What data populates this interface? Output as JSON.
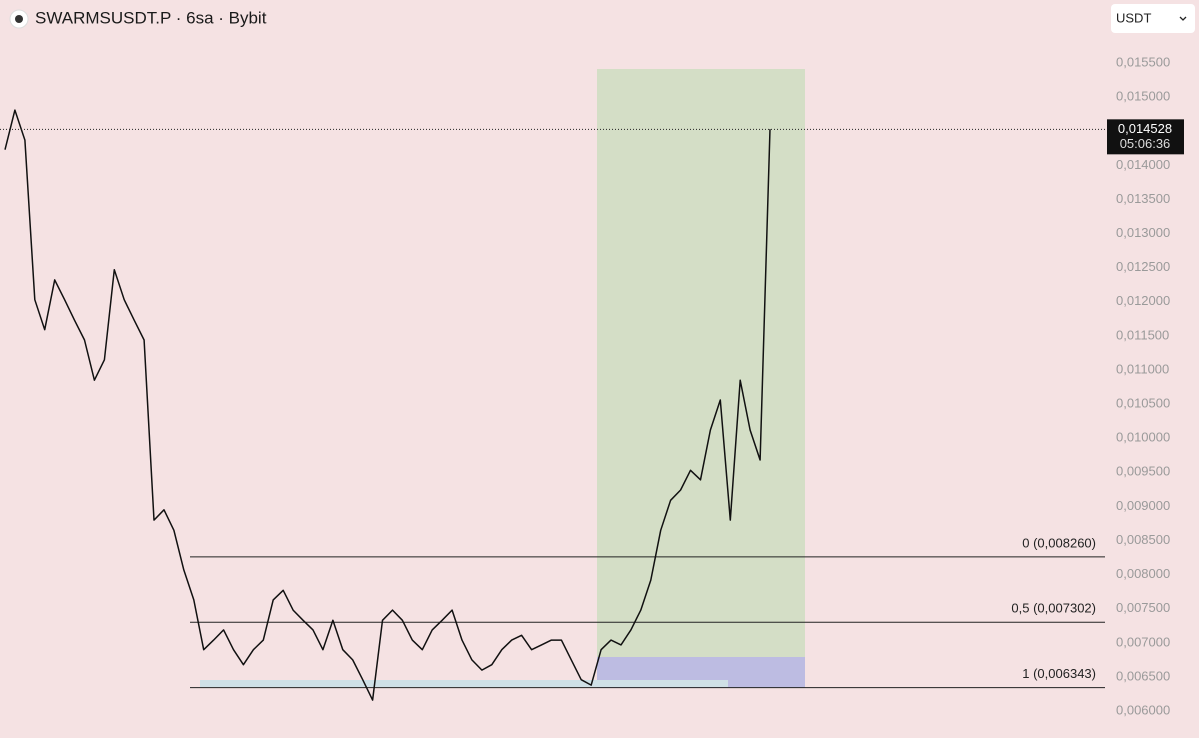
{
  "chart_data": {
    "type": "line",
    "title": "SWARMSUSDT.P · 6sa · Bybit",
    "currency": "USDT",
    "color": "#111111",
    "values": [
      0.01423,
      0.01481,
      0.01437,
      0.01203,
      0.01159,
      0.01232,
      0.01203,
      0.01173,
      0.01144,
      0.01085,
      0.01115,
      0.01247,
      0.01203,
      0.01173,
      0.01144,
      0.0088,
      0.00895,
      0.00865,
      0.00807,
      0.00763,
      0.0069,
      0.00704,
      0.00719,
      0.0069,
      0.00668,
      0.0069,
      0.00704,
      0.00763,
      0.00777,
      0.00748,
      0.00733,
      0.00719,
      0.0069,
      0.00733,
      0.0069,
      0.00675,
      0.00646,
      0.00616,
      0.00733,
      0.00748,
      0.00733,
      0.00704,
      0.0069,
      0.00719,
      0.00733,
      0.00748,
      0.00704,
      0.00675,
      0.0066,
      0.00668,
      0.0069,
      0.00704,
      0.00711,
      0.0069,
      0.00697,
      0.00704,
      0.00704,
      0.00675,
      0.00646,
      0.00638,
      0.0069,
      0.00704,
      0.00697,
      0.00719,
      0.00748,
      0.00792,
      0.00865,
      0.00909,
      0.00924,
      0.00953,
      0.00939,
      0.01012,
      0.01056,
      0.0088,
      0.01085,
      0.01012,
      0.00968,
      0.01453
    ],
    "ylim": [
      0.005605,
      0.016424
    ],
    "yticks": [
      {
        "value": 0.0155,
        "label": "0,015500"
      },
      {
        "value": 0.015,
        "label": "0,015000"
      },
      {
        "value": 0.0145,
        "label": "0,014500"
      },
      {
        "value": 0.014,
        "label": "0,014000"
      },
      {
        "value": 0.0135,
        "label": "0,013500"
      },
      {
        "value": 0.013,
        "label": "0,013000"
      },
      {
        "value": 0.0125,
        "label": "0,012500"
      },
      {
        "value": 0.012,
        "label": "0,012000"
      },
      {
        "value": 0.0115,
        "label": "0,011500"
      },
      {
        "value": 0.011,
        "label": "0,011000"
      },
      {
        "value": 0.0105,
        "label": "0,010500"
      },
      {
        "value": 0.01,
        "label": "0,010000"
      },
      {
        "value": 0.0095,
        "label": "0,009500"
      },
      {
        "value": 0.009,
        "label": "0,009000"
      },
      {
        "value": 0.0085,
        "label": "0,008500"
      },
      {
        "value": 0.008,
        "label": "0,008000"
      },
      {
        "value": 0.0075,
        "label": "0,007500"
      },
      {
        "value": 0.007,
        "label": "0,007000"
      },
      {
        "value": 0.0065,
        "label": "0,006500"
      },
      {
        "value": 0.006,
        "label": "0,006000"
      }
    ],
    "last_price": {
      "value": 0.014528,
      "label": "0,014528"
    },
    "countdown": "05:06:36",
    "fib_levels": [
      {
        "value": 0.00826,
        "label": "0 (0,008260)"
      },
      {
        "value": 0.007302,
        "label": "0,5 (0,007302)"
      },
      {
        "value": 0.006343,
        "label": "1 (0,006343)"
      }
    ]
  }
}
